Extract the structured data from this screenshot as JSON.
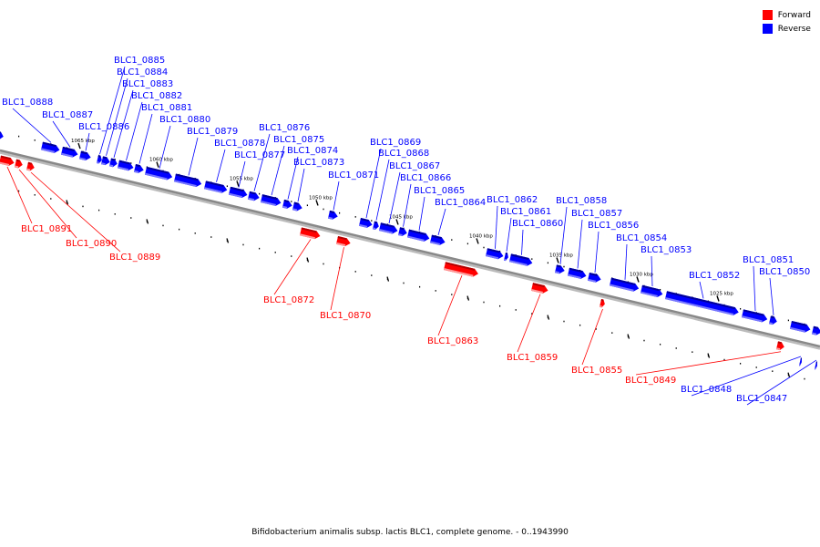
{
  "legend": [
    {
      "label": "Forward",
      "color": "#ff0000"
    },
    {
      "label": "Reverse",
      "color": "#0000ff"
    }
  ],
  "footer": "Bifidobacterium animalis subsp. lactis BLC1, complete genome. - 0..1943990",
  "colors": {
    "forward": "#ff0000",
    "reverse": "#0000ff",
    "backbone": "#888888"
  },
  "kbp_ticks": [
    "1065 kbp",
    "1060 kbp",
    "1055 kbp",
    "1050 kbp",
    "1045 kbp",
    "1040 kbp",
    "1035 kbp",
    "1030 kbp",
    "1025 kbp"
  ],
  "genes": [
    {
      "id": "BLC1_0888",
      "strand": "reverse"
    },
    {
      "id": "BLC1_0887",
      "strand": "reverse"
    },
    {
      "id": "BLC1_0886",
      "strand": "reverse"
    },
    {
      "id": "BLC1_0885",
      "strand": "reverse"
    },
    {
      "id": "BLC1_0884",
      "strand": "reverse"
    },
    {
      "id": "BLC1_0883",
      "strand": "reverse"
    },
    {
      "id": "BLC1_0882",
      "strand": "reverse"
    },
    {
      "id": "BLC1_0881",
      "strand": "reverse"
    },
    {
      "id": "BLC1_0880",
      "strand": "reverse"
    },
    {
      "id": "BLC1_0879",
      "strand": "reverse"
    },
    {
      "id": "BLC1_0878",
      "strand": "reverse"
    },
    {
      "id": "BLC1_0877",
      "strand": "reverse"
    },
    {
      "id": "BLC1_0876",
      "strand": "reverse"
    },
    {
      "id": "BLC1_0875",
      "strand": "reverse"
    },
    {
      "id": "BLC1_0874",
      "strand": "reverse"
    },
    {
      "id": "BLC1_0873",
      "strand": "reverse"
    },
    {
      "id": "BLC1_0871",
      "strand": "reverse"
    },
    {
      "id": "BLC1_0869",
      "strand": "reverse"
    },
    {
      "id": "BLC1_0868",
      "strand": "reverse"
    },
    {
      "id": "BLC1_0867",
      "strand": "reverse"
    },
    {
      "id": "BLC1_0866",
      "strand": "reverse"
    },
    {
      "id": "BLC1_0865",
      "strand": "reverse"
    },
    {
      "id": "BLC1_0864",
      "strand": "reverse"
    },
    {
      "id": "BLC1_0862",
      "strand": "reverse"
    },
    {
      "id": "BLC1_0861",
      "strand": "reverse"
    },
    {
      "id": "BLC1_0860",
      "strand": "reverse"
    },
    {
      "id": "BLC1_0858",
      "strand": "reverse"
    },
    {
      "id": "BLC1_0857",
      "strand": "reverse"
    },
    {
      "id": "BLC1_0856",
      "strand": "reverse"
    },
    {
      "id": "BLC1_0854",
      "strand": "reverse"
    },
    {
      "id": "BLC1_0853",
      "strand": "reverse"
    },
    {
      "id": "BLC1_0852",
      "strand": "reverse"
    },
    {
      "id": "BLC1_0851",
      "strand": "reverse"
    },
    {
      "id": "BLC1_0850",
      "strand": "reverse"
    },
    {
      "id": "BLC1_0891",
      "strand": "forward"
    },
    {
      "id": "BLC1_0890",
      "strand": "forward"
    },
    {
      "id": "BLC1_0889",
      "strand": "forward"
    },
    {
      "id": "BLC1_0872",
      "strand": "forward"
    },
    {
      "id": "BLC1_0870",
      "strand": "forward"
    },
    {
      "id": "BLC1_0863",
      "strand": "forward"
    },
    {
      "id": "BLC1_0859",
      "strand": "forward"
    },
    {
      "id": "BLC1_0855",
      "strand": "forward"
    },
    {
      "id": "BLC1_0849",
      "strand": "forward"
    },
    {
      "id": "BLC1_0848",
      "strand": "reverse"
    },
    {
      "id": "BLC1_0847",
      "strand": "reverse"
    }
  ]
}
